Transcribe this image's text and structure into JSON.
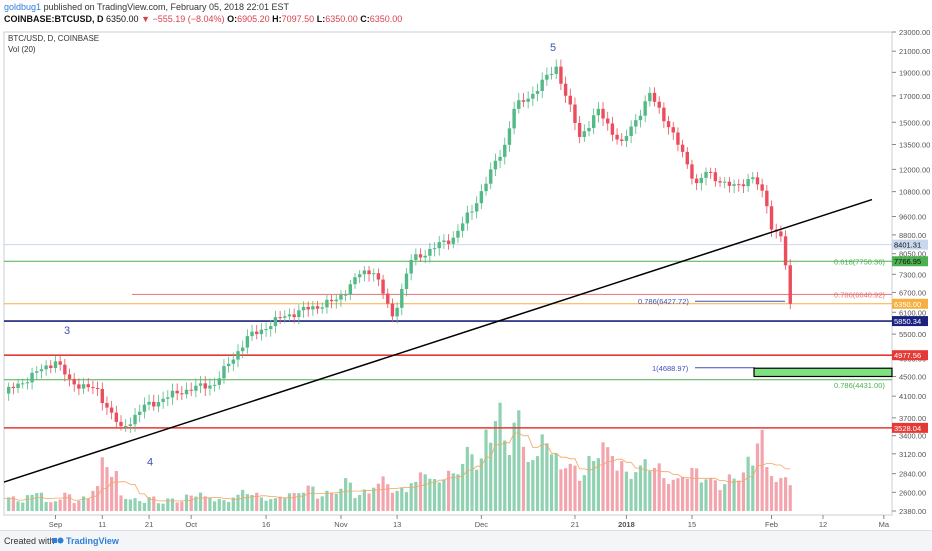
{
  "header": {
    "author": "goldbug1",
    "published": "published on TradingView.com, February 05, 2018 22:01 EST",
    "symbol": "COINBASE:BTCUSD, D",
    "last": "6350.00",
    "change": "▼ −555.19 (−8.04%)",
    "o_label": "O:",
    "o_value": "6905.20",
    "h_label": "H:",
    "h_value": "7097.50",
    "l_label": "L:",
    "l_value": "6350.00",
    "c_label": "C:",
    "c_value": "6350.00"
  },
  "footer": {
    "created": "Created with",
    "brand": "TradingView"
  },
  "chart_data": {
    "type": "candlestick",
    "title": "BTC/USD, D, COINBASE",
    "volume_label": "Vol (20)",
    "y_scale": "log",
    "ylim": [
      2380,
      23000
    ],
    "y_ticks": [
      23000,
      21000,
      19000,
      17000,
      15000,
      13500,
      12000,
      10800,
      9600,
      8800,
      8050,
      7300,
      6700,
      6100,
      5500,
      4900,
      4500,
      4100,
      3700,
      3400,
      3120,
      2840,
      2600,
      2380
    ],
    "x_ticks": [
      "Sep",
      "11",
      "21",
      "Oct",
      "16",
      "Nov",
      "13",
      "Dec",
      "21",
      "2018",
      "15",
      "Feb",
      "12",
      "Ma"
    ],
    "date_range": [
      "2017-08-21",
      "2018-02-05"
    ],
    "price_anchors": [
      [
        "2017-08-21",
        4150
      ],
      [
        "2017-09-01",
        4850
      ],
      [
        "2017-09-04",
        4400
      ],
      [
        "2017-09-10",
        4200
      ],
      [
        "2017-09-15",
        3500
      ],
      [
        "2017-09-20",
        3900
      ],
      [
        "2017-09-28",
        4200
      ],
      [
        "2017-10-05",
        4350
      ],
      [
        "2017-10-12",
        5400
      ],
      [
        "2017-10-20",
        6000
      ],
      [
        "2017-10-31",
        6450
      ],
      [
        "2017-11-05",
        7300
      ],
      [
        "2017-11-08",
        7450
      ],
      [
        "2017-11-12",
        5950
      ],
      [
        "2017-11-16",
        7800
      ],
      [
        "2017-11-25",
        8700
      ],
      [
        "2017-11-29",
        9900
      ],
      [
        "2017-12-06",
        13500
      ],
      [
        "2017-12-08",
        16000
      ],
      [
        "2017-12-12",
        17200
      ],
      [
        "2017-12-17",
        19500
      ],
      [
        "2017-12-22",
        14000
      ],
      [
        "2017-12-26",
        15800
      ],
      [
        "2017-12-31",
        13500
      ],
      [
        "2018-01-06",
        17100
      ],
      [
        "2018-01-10",
        14800
      ],
      [
        "2018-01-16",
        11200
      ],
      [
        "2018-01-18",
        11800
      ],
      [
        "2018-01-24",
        11000
      ],
      [
        "2018-01-28",
        11600
      ],
      [
        "2018-01-31",
        10200
      ],
      [
        "2018-02-01",
        9100
      ],
      [
        "2018-02-03",
        8800
      ],
      [
        "2018-02-05",
        6350
      ]
    ],
    "volume_series_sampled": [
      8,
      6,
      9,
      12,
      5,
      7,
      10,
      6,
      8,
      14,
      30,
      22,
      9,
      7,
      6,
      8,
      5,
      7,
      6,
      9,
      11,
      8,
      7,
      6,
      9,
      12,
      10,
      8,
      7,
      9,
      10,
      12,
      14,
      9,
      11,
      13,
      18,
      9,
      12,
      15,
      20,
      11,
      14,
      16,
      25,
      18,
      20,
      22,
      28,
      35,
      30,
      45,
      60,
      40,
      55,
      38,
      30,
      48,
      32,
      28,
      26,
      22,
      30,
      40,
      35,
      28,
      22,
      25,
      30,
      26,
      20,
      18,
      22,
      24,
      20,
      18,
      16,
      20,
      22,
      30,
      45,
      25,
      18,
      20
    ],
    "horizontal_levels": [
      {
        "value": 8401.31,
        "color": "#c9d7ee",
        "tag": "8401.31"
      },
      {
        "value": 7766.95,
        "color": "#4caf50",
        "tag": "7766.95"
      },
      {
        "value": 6640.92,
        "color": "#e57373",
        "tag": ""
      },
      {
        "value": 6350.0,
        "color": "#f5b041",
        "tag": "6350.00"
      },
      {
        "value": 5850.34,
        "color": "#1a237e",
        "tag": "5850.34"
      },
      {
        "value": 4977.56,
        "color": "#e53935",
        "tag": "4977.56"
      },
      {
        "value": 4431.0,
        "color": "#4caf50",
        "tag": ""
      },
      {
        "value": 3528.04,
        "color": "#e53935",
        "tag": "3528.04"
      }
    ],
    "annotations": [
      "5",
      "3",
      "4",
      "0.618(7750.36)",
      "0.786(6640.92)",
      "0.786(6427.72)",
      "1(4688.97)",
      "0.786(4431.00)"
    ],
    "colors": {
      "up": "#53b987",
      "down": "#eb4d5c",
      "vol_up": "#8fd1b0",
      "vol_down": "#f3a5ae",
      "ma": "#f4a460",
      "trendline": "#000000",
      "target_box": "#7ee07e"
    }
  }
}
